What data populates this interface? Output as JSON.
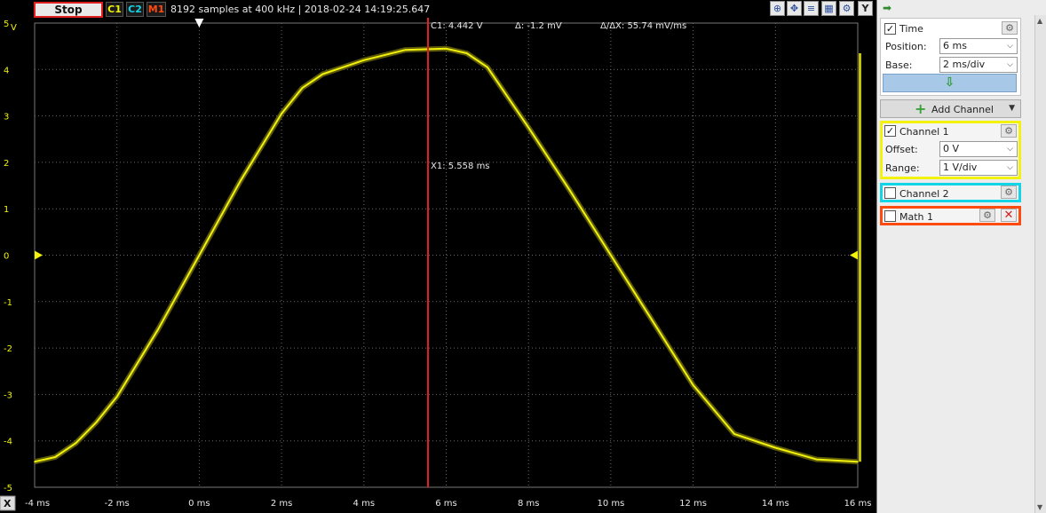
{
  "toolbar": {
    "stop_label": "Stop",
    "chips": [
      {
        "label": "C1",
        "color": "#f2f20c"
      },
      {
        "label": "C2",
        "color": "#10d6e8"
      },
      {
        "label": "M1",
        "color": "#ff4a10"
      }
    ],
    "info": "8192 samples at 400 kHz | 2018-02-24 14:19:25.647",
    "icons": [
      "zoom-icon",
      "pan-icon",
      "cursor-icon",
      "measure-icon",
      "settings-icon"
    ],
    "y_button_label": "Y"
  },
  "scope": {
    "y_axis_unit": "V",
    "x_axis_button": "X",
    "y_ticks": [
      "5",
      "4",
      "3",
      "2",
      "1",
      "0",
      "-1",
      "-2",
      "-3",
      "-4",
      "-5"
    ],
    "x_ticks": [
      "-4 ms",
      "-2 ms",
      "0 ms",
      "2 ms",
      "4 ms",
      "6 ms",
      "8 ms",
      "10 ms",
      "12 ms",
      "14 ms",
      "16 ms"
    ],
    "cursor": {
      "c1_readout": "C1: 4.442 V",
      "delta_readout": "Δ: -1.2 mV",
      "slope_readout": "Δ/ΔX: 55.74 mV/ms",
      "x_readout": "X1: 5.558 ms",
      "x_value_ms": 5.558,
      "color": "#e02020"
    },
    "trace_color": "#f2f20c"
  },
  "chart_data": {
    "type": "line",
    "xlabel": "",
    "ylabel": "V",
    "xlim": [
      -4,
      16
    ],
    "ylim": [
      -5,
      5
    ],
    "grid": true,
    "series": [
      {
        "name": "C1",
        "x": [
          -4,
          -3.5,
          -3,
          -2.5,
          -2,
          -1,
          0,
          1,
          2,
          2.5,
          3,
          4,
          5,
          6,
          6.5,
          7,
          8,
          9,
          10,
          11,
          12,
          13,
          14,
          15,
          16
        ],
        "y": [
          -4.45,
          -4.35,
          -4.05,
          -3.6,
          -3.05,
          -1.6,
          0,
          1.6,
          3.05,
          3.6,
          3.9,
          4.2,
          4.42,
          4.45,
          4.35,
          4.05,
          2.75,
          1.4,
          0,
          -1.4,
          -2.8,
          -3.85,
          -4.15,
          -4.4,
          -4.45
        ]
      }
    ]
  },
  "panel": {
    "time": {
      "label": "Time",
      "checked": "✓",
      "position_label": "Position:",
      "position_value": "6 ms",
      "base_label": "Base:",
      "base_value": "2 ms/div",
      "apply_icon": "⇩"
    },
    "add_channel_label": "Add Channel",
    "channel1": {
      "label": "Channel 1",
      "checked": "✓",
      "offset_label": "Offset:",
      "offset_value": "0 V",
      "range_label": "Range:",
      "range_value": "1 V/div"
    },
    "channel2": {
      "label": "Channel 2"
    },
    "math1": {
      "label": "Math 1"
    }
  }
}
